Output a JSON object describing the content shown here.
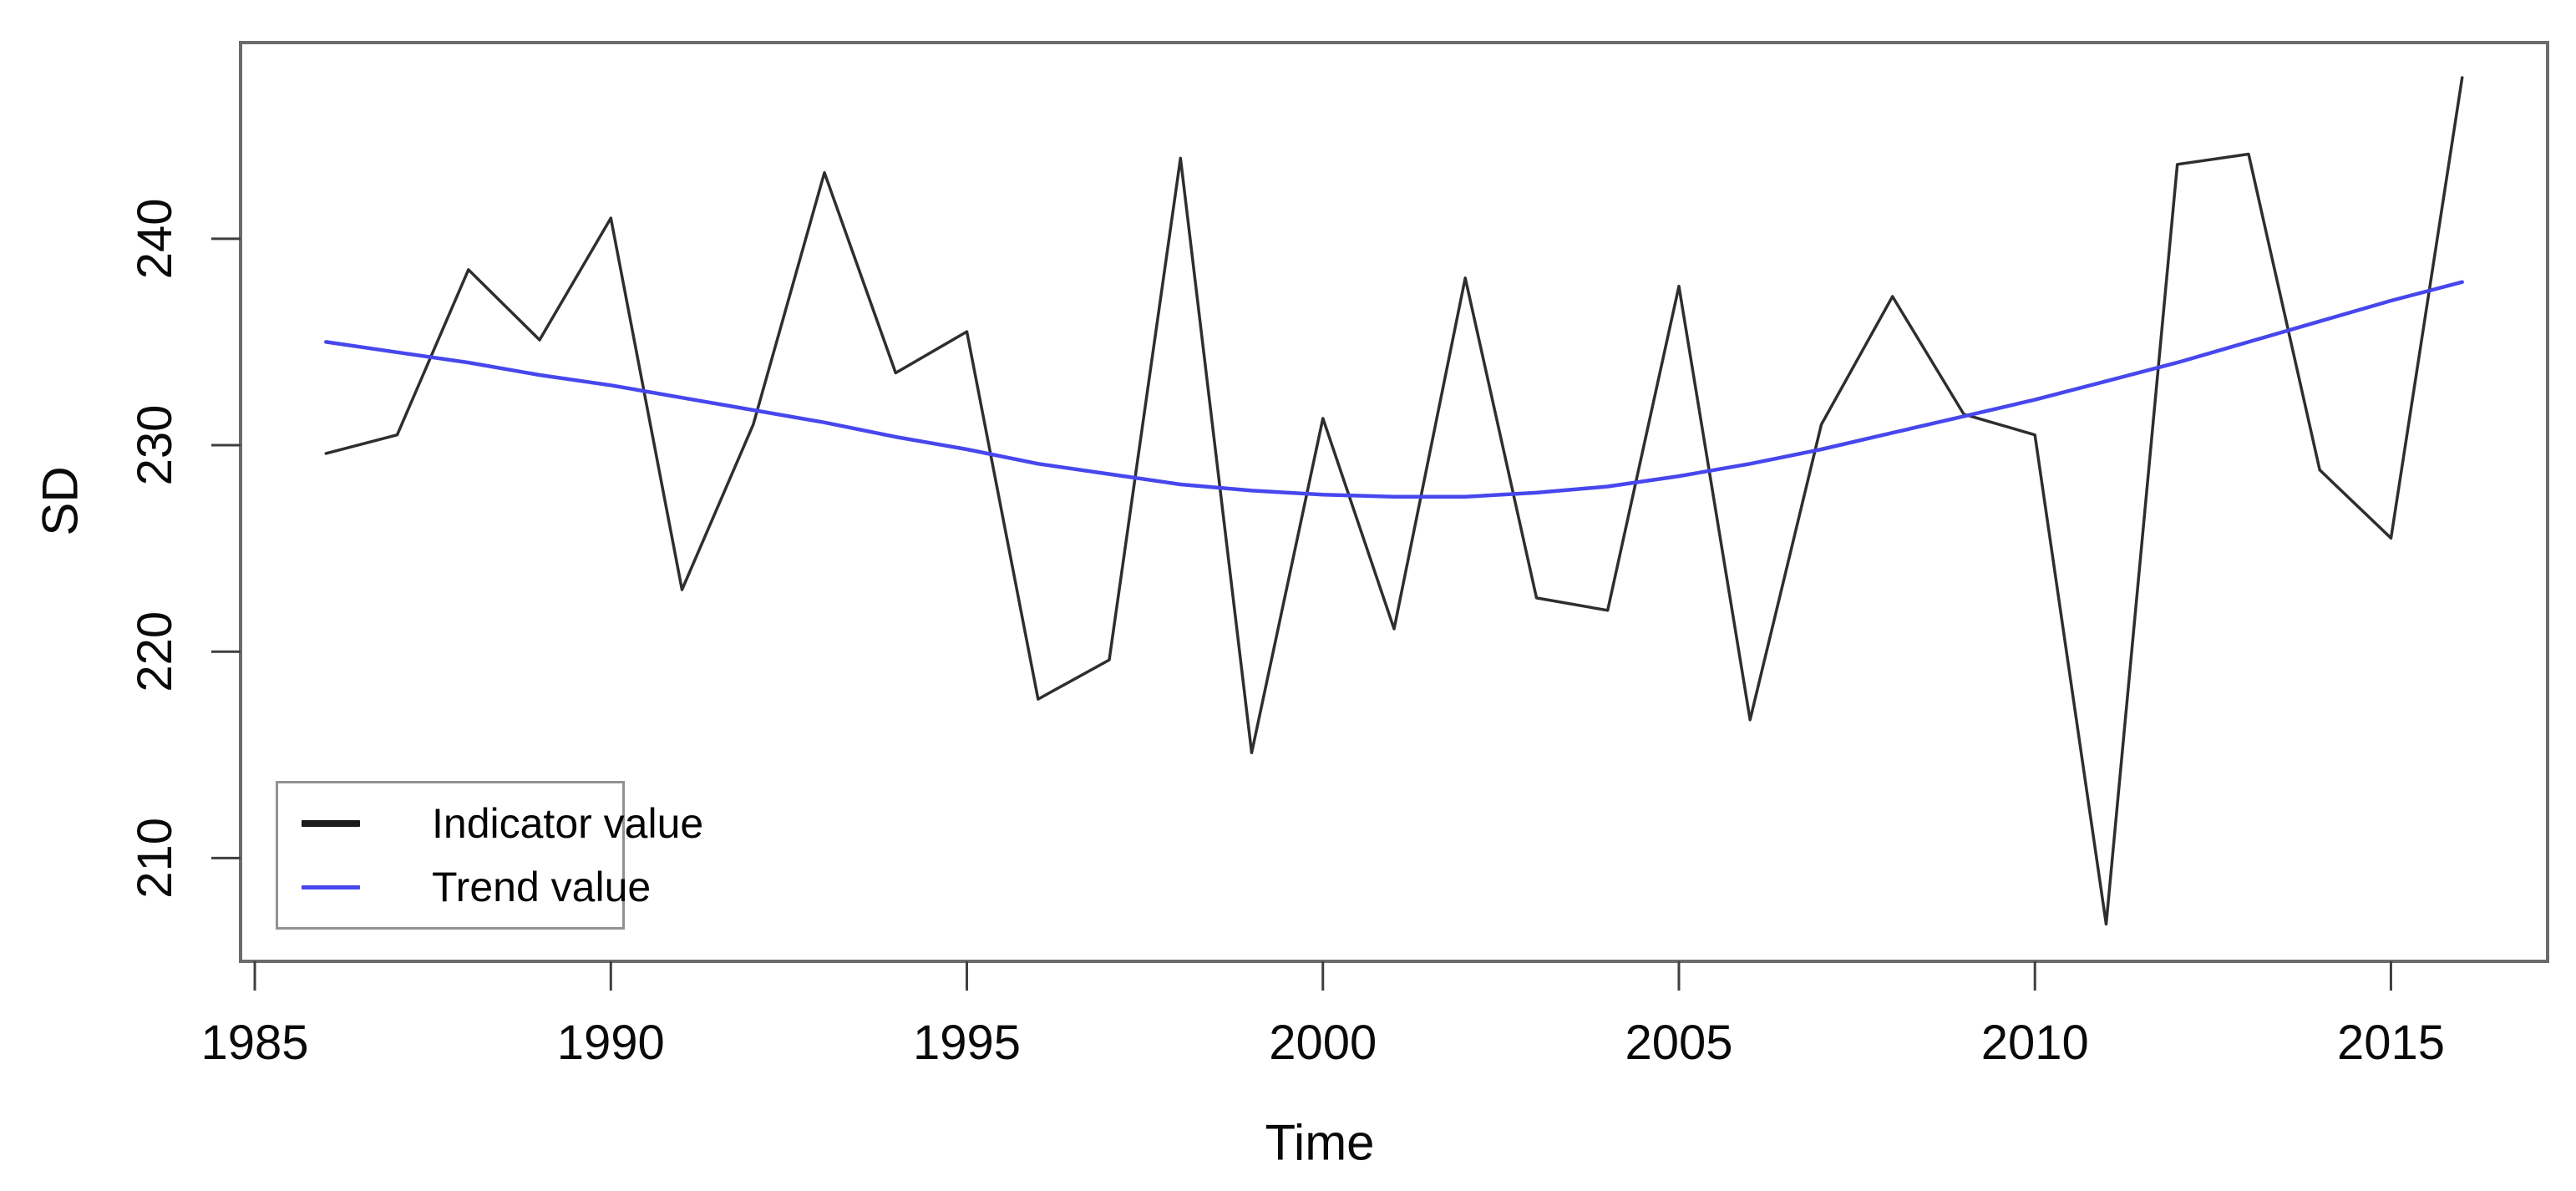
{
  "chart_data": {
    "type": "line",
    "title": "",
    "xlabel": "Time",
    "ylabel": "SD",
    "x": [
      1986,
      1987,
      1988,
      1989,
      1990,
      1991,
      1992,
      1993,
      1994,
      1995,
      1996,
      1997,
      1998,
      1999,
      2000,
      2001,
      2002,
      2003,
      2004,
      2005,
      2006,
      2007,
      2008,
      2009,
      2010,
      2011,
      2012,
      2013,
      2014,
      2015,
      2016
    ],
    "series": [
      {
        "name": "Indicator value",
        "color": "#2e2e2e",
        "values": [
          229.6,
          230.5,
          238.5,
          235.1,
          241.0,
          223.0,
          231.0,
          243.2,
          233.5,
          235.5,
          217.7,
          219.6,
          243.9,
          215.1,
          231.3,
          221.1,
          238.1,
          222.6,
          222.0,
          237.7,
          216.7,
          231.0,
          237.2,
          231.5,
          230.5,
          206.8,
          243.6,
          244.1,
          228.8,
          225.5,
          247.8
        ]
      },
      {
        "name": "Trend value",
        "color": "#4747ee",
        "values": [
          235.0,
          234.5,
          234.0,
          233.4,
          232.9,
          232.3,
          231.7,
          231.1,
          230.4,
          229.8,
          229.1,
          228.6,
          228.1,
          227.8,
          227.6,
          227.5,
          227.5,
          227.7,
          228.0,
          228.5,
          229.1,
          229.8,
          230.6,
          231.4,
          232.2,
          233.1,
          234.0,
          235.0,
          236.0,
          237.0,
          237.9
        ]
      }
    ],
    "xticks": [
      1985,
      1990,
      1995,
      2000,
      2005,
      2010,
      2015
    ],
    "yticks": [
      210,
      220,
      230,
      240
    ],
    "xlim": [
      1984.8,
      2017.2
    ],
    "ylim": [
      205.0,
      249.5
    ],
    "grid": false,
    "legend_position": "bottom-left",
    "legend_entries": [
      "Indicator value",
      "Trend value"
    ]
  },
  "colors": {
    "indicator_line": "#2e2e2e",
    "trend_line": "#4747ee",
    "plot_border": "#6b6b6b",
    "tick_mark": "#3f3f3f",
    "tick_text": "#0a0a0a",
    "legend_border": "#919191",
    "background": "#ffffff"
  }
}
